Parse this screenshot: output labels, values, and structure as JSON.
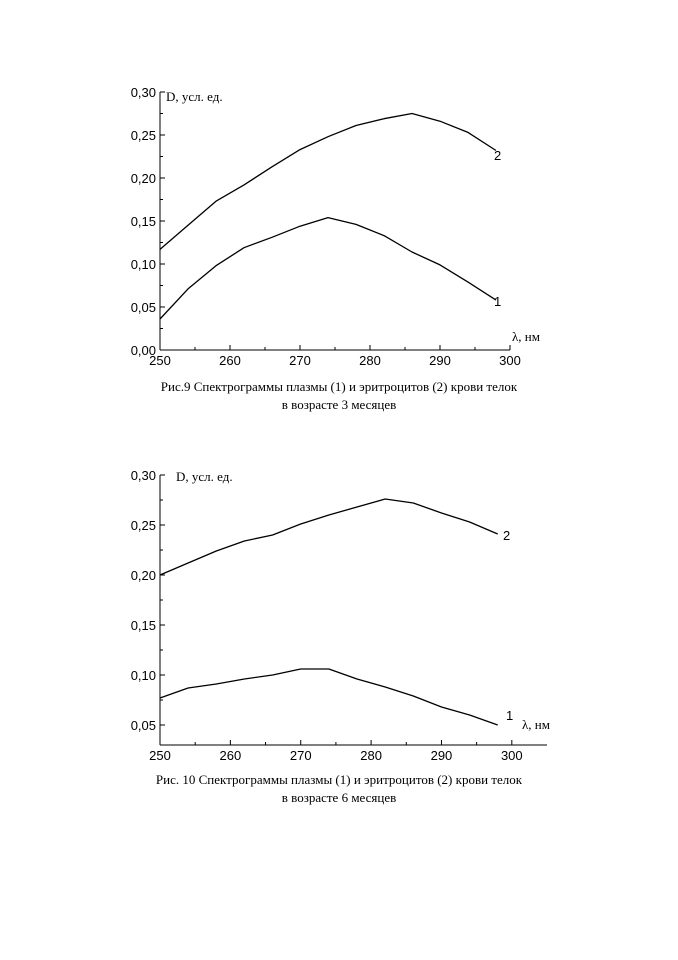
{
  "chart_data": [
    {
      "type": "line",
      "ylabel": "D, усл. ед.",
      "xlabel": "λ, нм",
      "xlim": [
        250,
        300
      ],
      "ylim": [
        0,
        0.3
      ],
      "xticks": [
        "250",
        "260",
        "270",
        "280",
        "290",
        "300"
      ],
      "yticks": [
        "0,00",
        "0,05",
        "0,10",
        "0,15",
        "0,20",
        "0,25",
        "0,30"
      ],
      "grid": false,
      "series": [
        {
          "name": "1",
          "x": [
            250,
            254,
            258,
            262,
            266,
            270,
            274,
            278,
            282,
            286,
            290,
            294,
            298
          ],
          "y": [
            0.036,
            0.071,
            0.098,
            0.119,
            0.131,
            0.144,
            0.154,
            0.146,
            0.133,
            0.114,
            0.099,
            0.079,
            0.058
          ]
        },
        {
          "name": "2",
          "x": [
            250,
            254,
            258,
            262,
            266,
            270,
            274,
            278,
            282,
            286,
            290,
            294,
            298
          ],
          "y": [
            0.117,
            0.145,
            0.173,
            0.192,
            0.213,
            0.233,
            0.248,
            0.261,
            0.269,
            0.275,
            0.266,
            0.253,
            0.232
          ]
        }
      ],
      "caption": [
        "Рис.9 Спектрограммы плазмы (1) и эритроцитов (2) крови телок",
        "в возрасте 3 месяцев"
      ]
    },
    {
      "type": "line",
      "ylabel": "D, усл. ед.",
      "xlabel": "λ, нм",
      "xlim": [
        250,
        305
      ],
      "ylim": [
        0.03,
        0.3
      ],
      "xticks": [
        "250",
        "260",
        "270",
        "280",
        "290",
        "300"
      ],
      "yticks": [
        "0,05",
        "0,10",
        "0,15",
        "0,20",
        "0,25",
        "0,30"
      ],
      "grid": false,
      "series": [
        {
          "name": "1",
          "x": [
            250,
            254,
            258,
            262,
            266,
            270,
            274,
            278,
            282,
            286,
            290,
            294,
            298
          ],
          "y": [
            0.077,
            0.087,
            0.091,
            0.096,
            0.1,
            0.106,
            0.106,
            0.096,
            0.088,
            0.079,
            0.068,
            0.06,
            0.05
          ]
        },
        {
          "name": "2",
          "x": [
            250,
            254,
            258,
            262,
            266,
            270,
            274,
            278,
            282,
            286,
            290,
            294,
            298
          ],
          "y": [
            0.2,
            0.212,
            0.224,
            0.234,
            0.24,
            0.251,
            0.26,
            0.268,
            0.276,
            0.272,
            0.262,
            0.253,
            0.241
          ]
        }
      ],
      "caption": [
        "Рис. 10 Спектрограммы плазмы (1) и эритроцитов (2) крови телок",
        "в возрасте 6 месяцев"
      ]
    }
  ]
}
